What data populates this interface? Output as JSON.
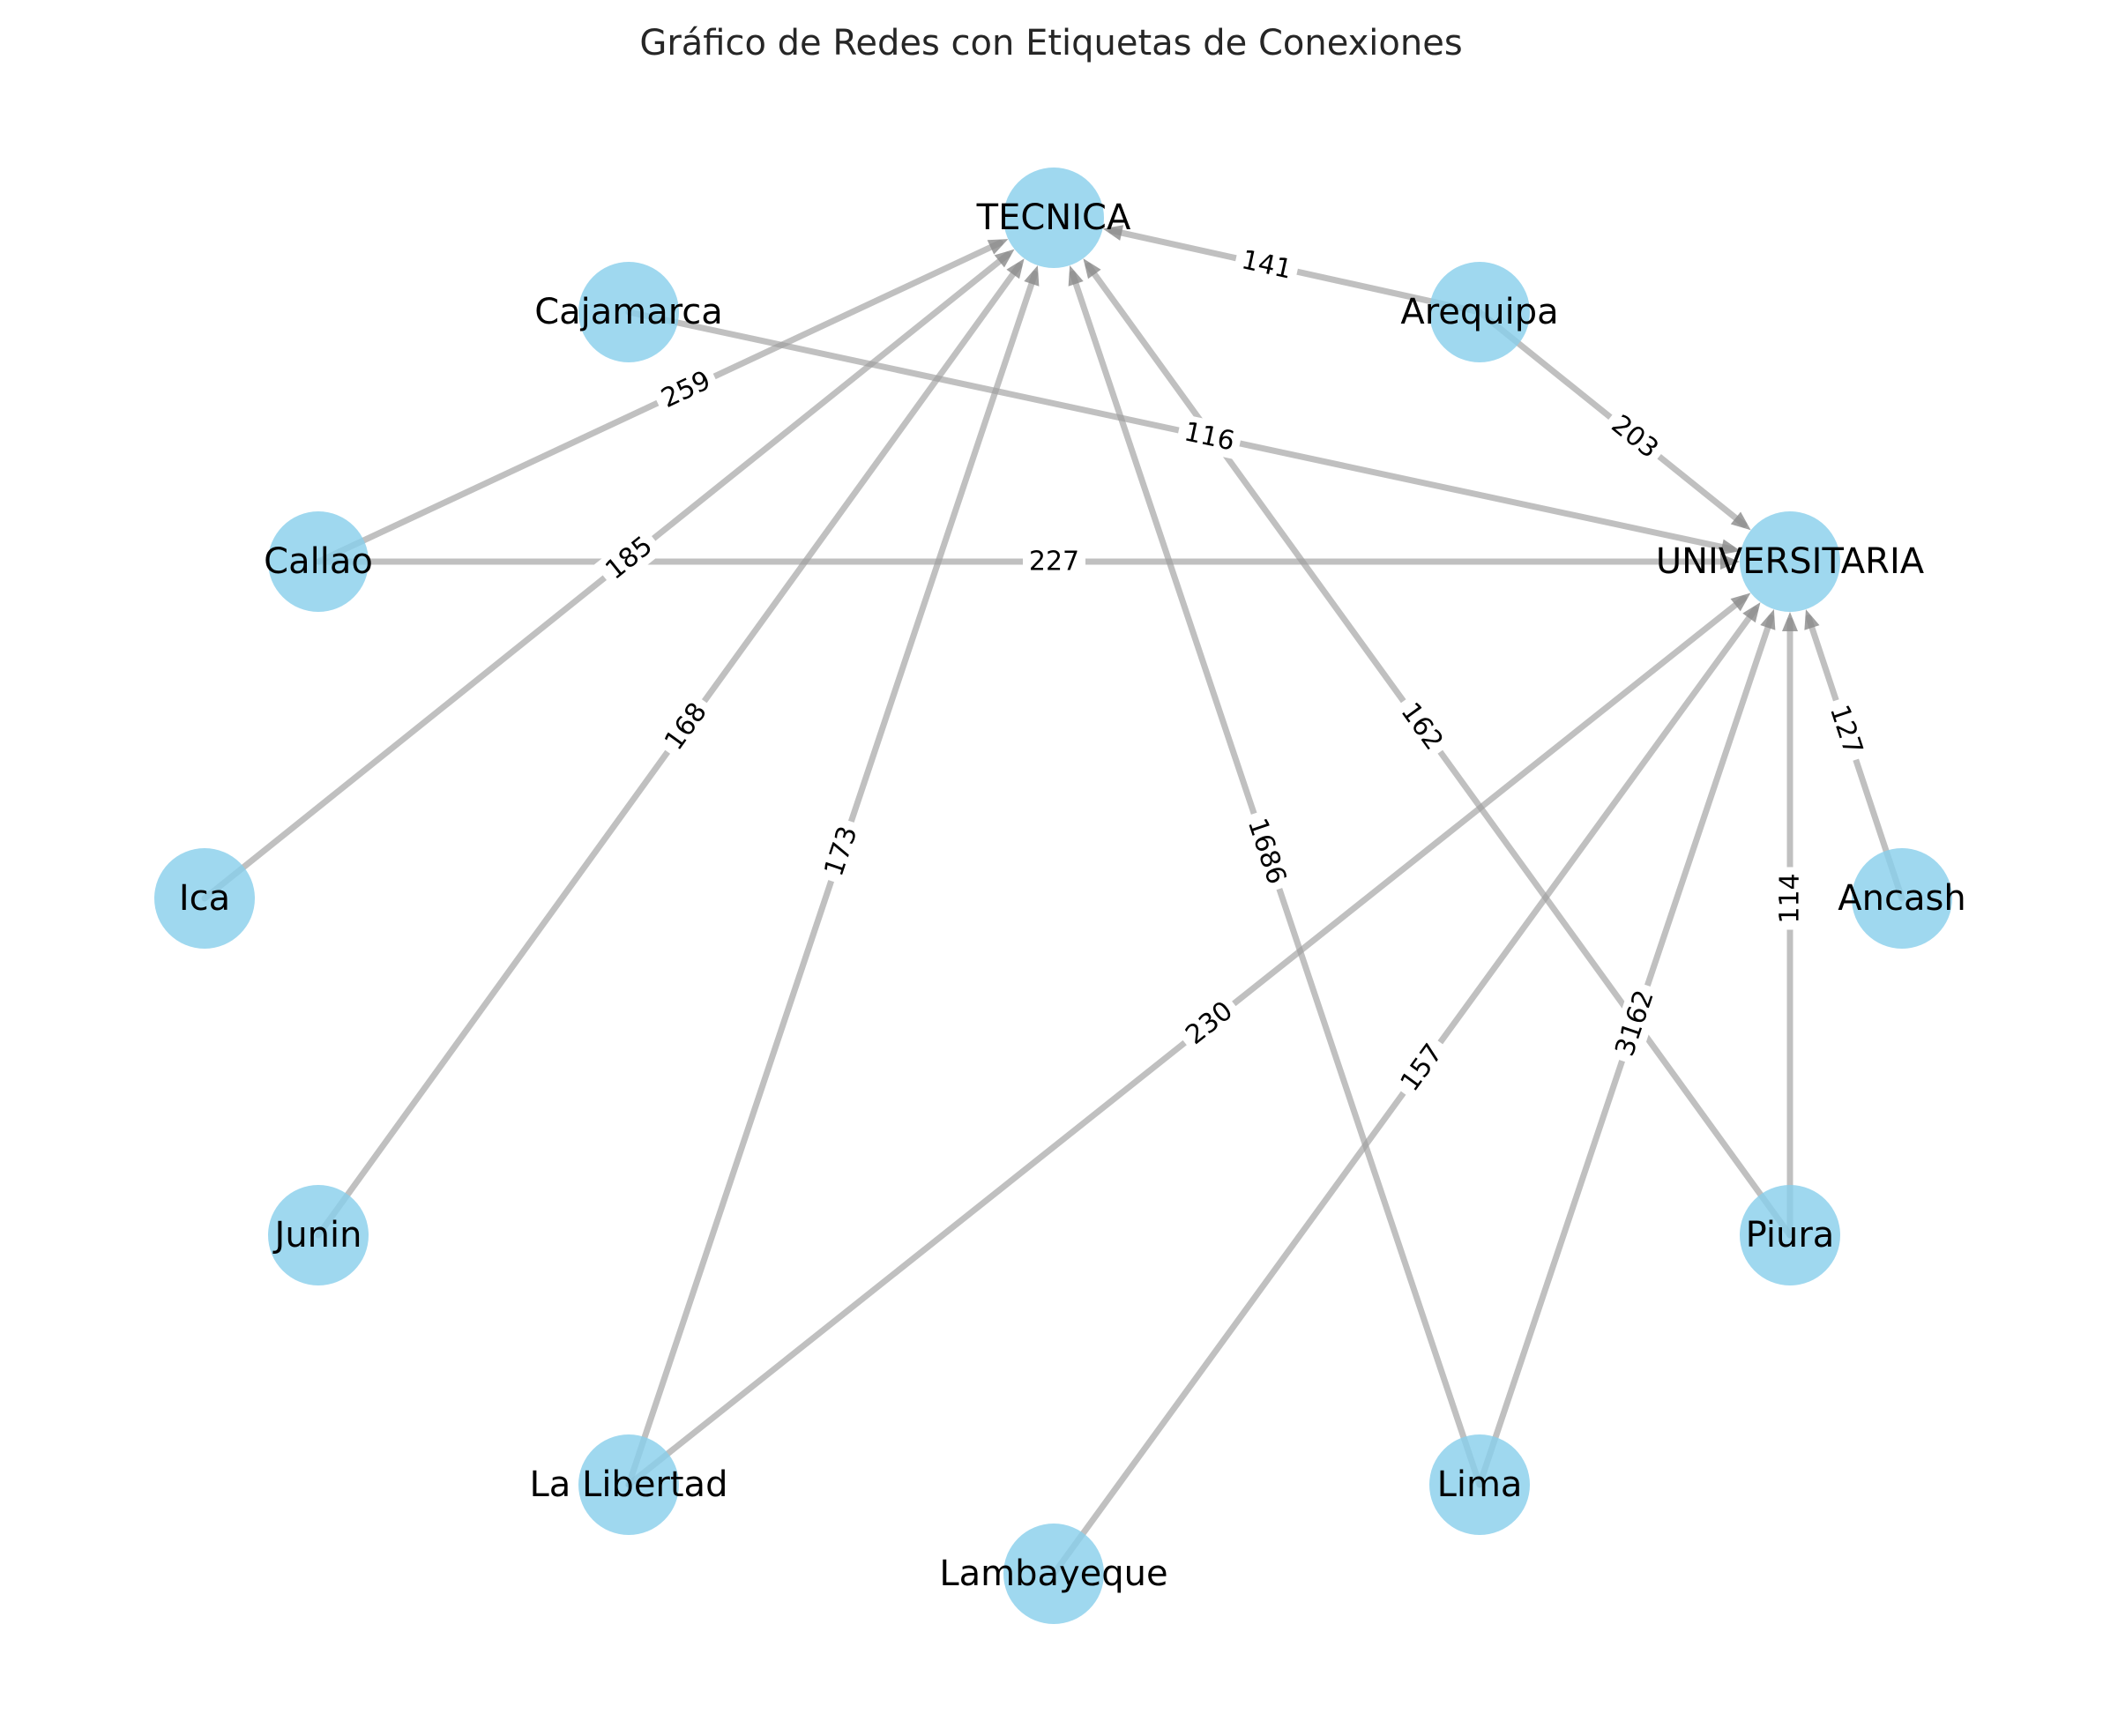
{
  "title": "Gráfico de Redes con Etiquetas de Conexiones",
  "colors": {
    "node_fill": "#87CEEB",
    "edge_stroke": "#9e9e9e",
    "background": "#ffffff"
  },
  "graph": {
    "directed": true,
    "nodes": [
      {
        "id": "TECNICA",
        "label": "TECNICA"
      },
      {
        "id": "UNIVERSITARIA",
        "label": "UNIVERSITARIA"
      },
      {
        "id": "Arequipa",
        "label": "Arequipa"
      },
      {
        "id": "Cajamarca",
        "label": "Cajamarca"
      },
      {
        "id": "Callao",
        "label": "Callao"
      },
      {
        "id": "Ica",
        "label": "Ica"
      },
      {
        "id": "Junin",
        "label": "Junin"
      },
      {
        "id": "La Libertad",
        "label": "La Libertad"
      },
      {
        "id": "Lambayeque",
        "label": "Lambayeque"
      },
      {
        "id": "Lima",
        "label": "Lima"
      },
      {
        "id": "Piura",
        "label": "Piura"
      },
      {
        "id": "Ancash",
        "label": "Ancash"
      }
    ],
    "edges": [
      {
        "source": "Arequipa",
        "target": "TECNICA",
        "label": "141"
      },
      {
        "source": "Arequipa",
        "target": "UNIVERSITARIA",
        "label": "203"
      },
      {
        "source": "Cajamarca",
        "target": "UNIVERSITARIA",
        "label": "116"
      },
      {
        "source": "Callao",
        "target": "TECNICA",
        "label": "259"
      },
      {
        "source": "Callao",
        "target": "UNIVERSITARIA",
        "label": "227"
      },
      {
        "source": "Ica",
        "target": "TECNICA",
        "label": "185"
      },
      {
        "source": "Junin",
        "target": "TECNICA",
        "label": "168"
      },
      {
        "source": "La Libertad",
        "target": "TECNICA",
        "label": "173"
      },
      {
        "source": "La Libertad",
        "target": "UNIVERSITARIA",
        "label": "230"
      },
      {
        "source": "Lima",
        "target": "TECNICA",
        "label": "1686"
      },
      {
        "source": "Lima",
        "target": "UNIVERSITARIA",
        "label": "3162"
      },
      {
        "source": "Lambayeque",
        "target": "UNIVERSITARIA",
        "label": "157"
      },
      {
        "source": "Piura",
        "target": "TECNICA",
        "label": "162"
      },
      {
        "source": "Piura",
        "target": "UNIVERSITARIA",
        "label": "114"
      },
      {
        "source": "Ancash",
        "target": "UNIVERSITARIA",
        "label": "127"
      }
    ]
  }
}
